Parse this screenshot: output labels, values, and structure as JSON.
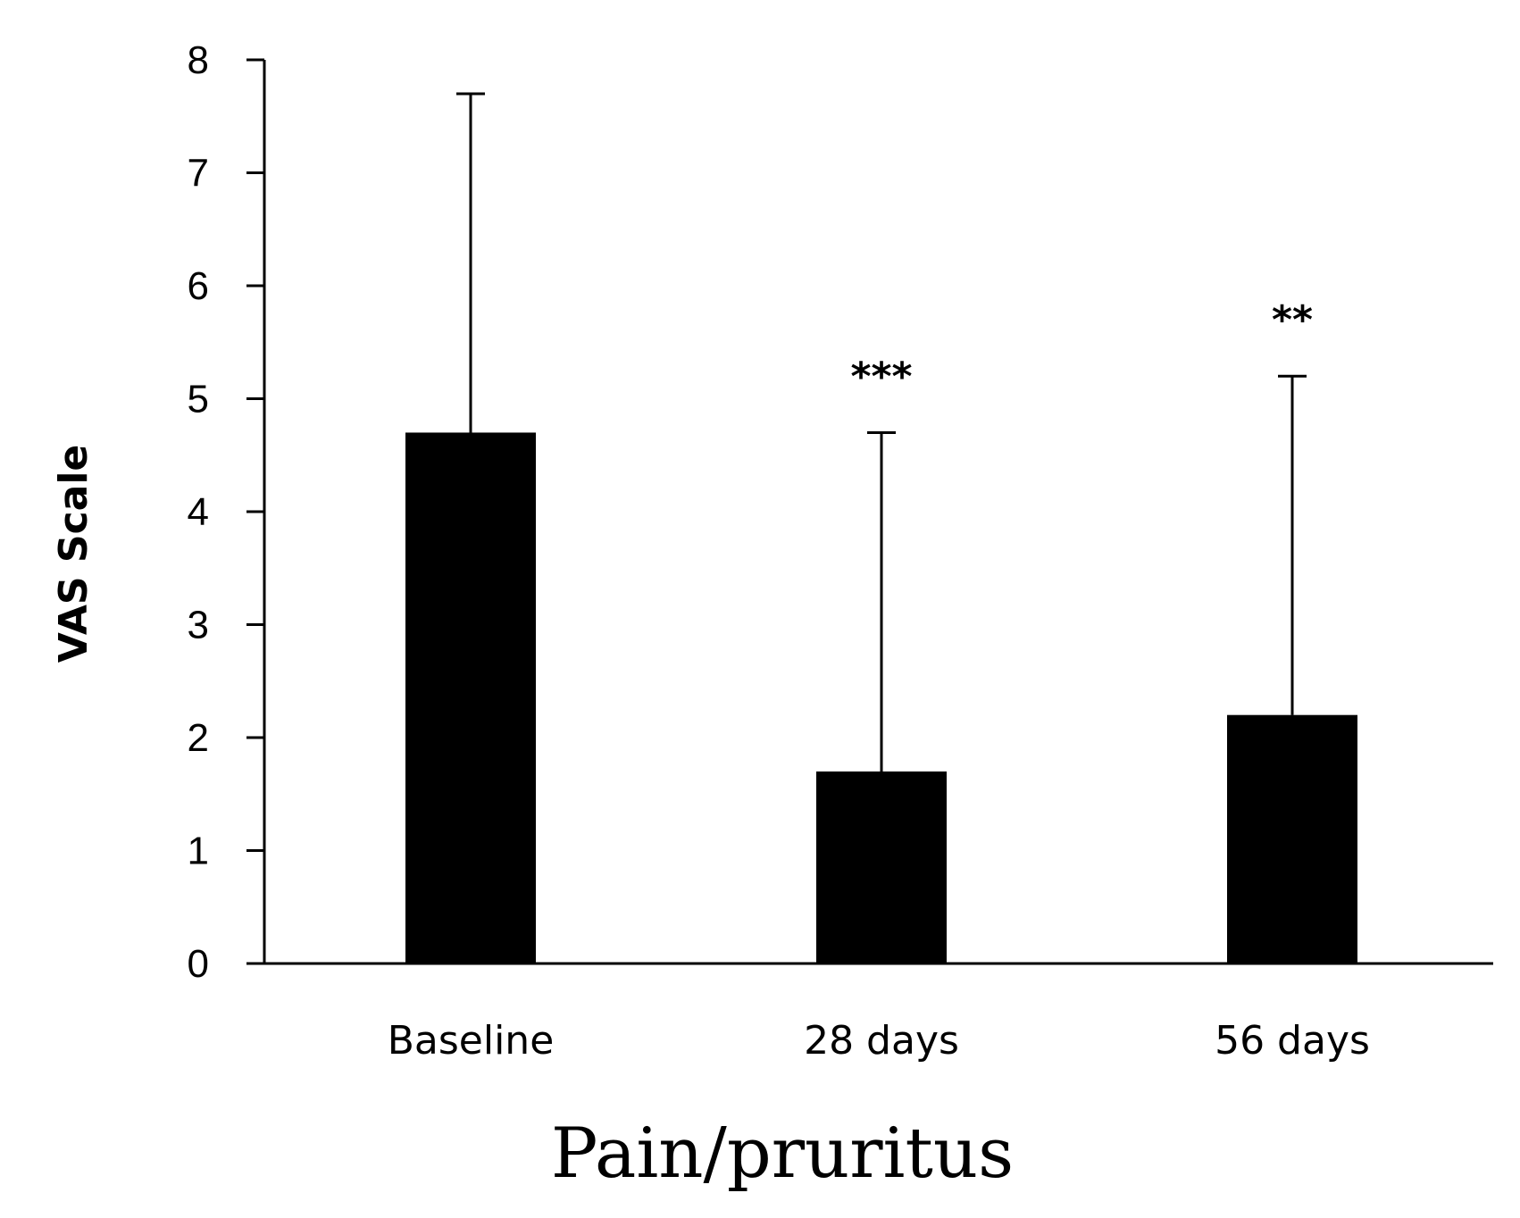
{
  "chart_data": {
    "type": "bar",
    "categories": [
      "Baseline",
      "28 days",
      "56 days"
    ],
    "values": [
      4.7,
      1.7,
      2.2
    ],
    "error_upper": [
      7.7,
      4.7,
      5.2
    ],
    "significance": [
      "",
      "***",
      "**"
    ],
    "xlabel": "Pain/pruritus",
    "ylabel": "VAS Scale",
    "ylim": [
      0,
      8
    ],
    "yticks": [
      "0",
      "1",
      "2",
      "3",
      "4",
      "5",
      "6",
      "7",
      "8"
    ],
    "grid": false,
    "bar_color": "#000000"
  }
}
